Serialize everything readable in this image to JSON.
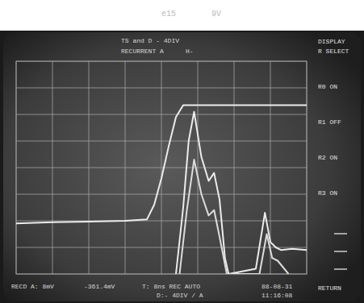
{
  "chart_data": {
    "type": "line",
    "grid": true,
    "tick_labels": false,
    "xlim": [
      0,
      8
    ],
    "ylim": [
      0,
      8
    ],
    "xticks": [
      0,
      1,
      2,
      3,
      4,
      5,
      6,
      7,
      8
    ],
    "yticks": [
      0,
      1,
      2,
      3,
      4,
      5,
      6,
      7,
      8
    ],
    "annotations": [
      "e15",
      "9V",
      "TS and D - 4DIV",
      "RECURRENT A",
      "H-",
      "DISPLAY",
      "R SELECT",
      "R0 ON",
      "R1 OFF",
      "R2 ON",
      "R3 ON",
      "RECD A: 8mV",
      "-361.4mV",
      "T: 8ns REC AUTO",
      "D:- 4DIV / A",
      "88-08-31",
      "11:16:08",
      "RETURN"
    ],
    "series": [
      {
        "name": "R0",
        "color": "#ececec",
        "x": [
          0,
          1,
          2,
          3,
          3.6,
          3.8,
          4.0,
          4.2,
          4.4,
          4.6,
          5,
          6,
          7,
          8
        ],
        "values": [
          1.9,
          1.95,
          1.97,
          2.0,
          2.05,
          2.6,
          3.6,
          4.8,
          5.9,
          6.35,
          6.35,
          6.35,
          6.35,
          6.35
        ]
      },
      {
        "name": "R2",
        "color": "#ececec",
        "x": [
          4.4,
          4.6,
          4.75,
          4.9,
          5.1,
          5.3,
          5.45,
          5.6,
          5.75,
          5.85,
          6.6,
          6.85,
          7.0,
          7.15,
          7.3,
          7.6,
          8
        ],
        "values": [
          0,
          2.5,
          5.0,
          6.1,
          4.4,
          3.5,
          3.8,
          2.8,
          0.6,
          0,
          0.2,
          2.3,
          1.2,
          1.0,
          0.9,
          0.95,
          0.9
        ]
      },
      {
        "name": "R3",
        "color": "#dcdcdc",
        "x": [
          4.5,
          4.7,
          4.9,
          5.1,
          5.3,
          5.45,
          5.6,
          5.8,
          6.7,
          6.9,
          7.05,
          7.2,
          7.5
        ],
        "values": [
          0,
          2.4,
          4.3,
          3.0,
          2.2,
          2.4,
          1.4,
          0,
          0,
          1.5,
          0.6,
          0.5,
          0
        ]
      }
    ]
  }
}
